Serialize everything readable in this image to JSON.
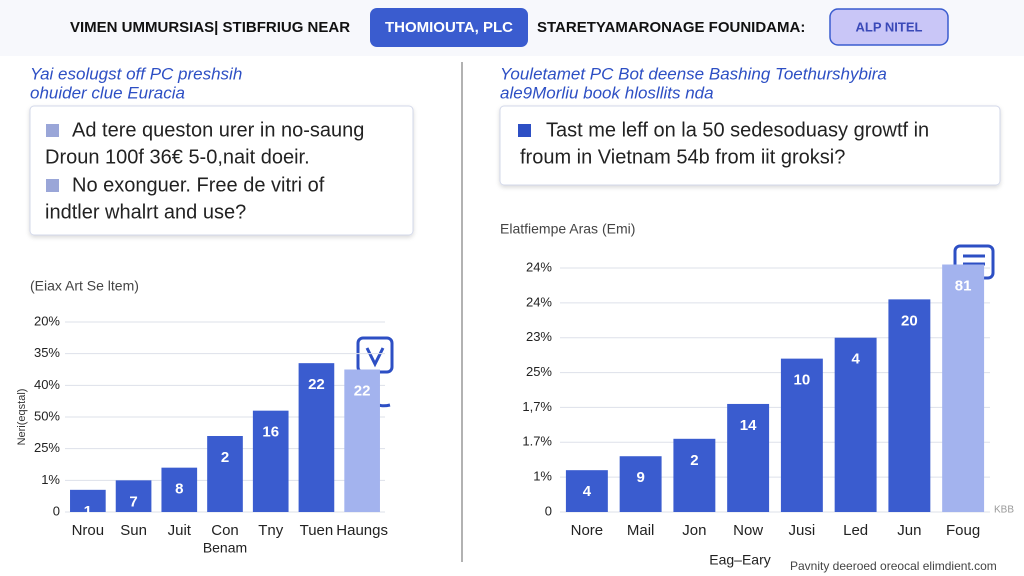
{
  "header": {
    "left": "VIMEN UMMURSIAS| STIBFRIUG NEAR",
    "tab": "THOMIOUTA, PLC",
    "middle": "STARETYAMARONAGE FOUNIDAMA:",
    "button": "ALP NITEL"
  },
  "left_panel": {
    "title": [
      "Yai esolugst off PC preshsih",
      "ohuider clue Euracia"
    ],
    "card": [
      [
        "Ad tere queston urer in no-saung",
        "Droun 100f 36€ 5-0,nait doeir."
      ],
      [
        "No exonguer. Free de vitri of",
        "indtler whalrt and use?"
      ]
    ]
  },
  "right_panel": {
    "title": [
      "Youletamet PC Bot deense Bashing Toethurshybira",
      "ale9Morliu book hlosllits nda"
    ],
    "card": [
      [
        "Tast me leff on la 50 sedesoduasy growtf in",
        "froum in Vietnam 54b from iit groksi?"
      ]
    ]
  },
  "footer_note": "Pavnity deeroed oreocal elimdient.com",
  "corner_mark": "KBB",
  "chart_data": [
    {
      "type": "bar",
      "title": "(Eiax Art Se ltem)",
      "y_label": "Neri(eqstal)",
      "x_label": "Benam",
      "categories": [
        "Nrou",
        "Sun",
        "Juit",
        "Con",
        "Tny",
        "Tuen",
        "Haungs"
      ],
      "values": [
        0.7,
        1.0,
        1.4,
        2.4,
        3.2,
        4.7,
        4.5
      ],
      "bar_labels": [
        "1",
        "7",
        "8",
        "2",
        "16",
        "22",
        "22"
      ],
      "colors": [
        "#3a5ccf",
        "#3a5ccf",
        "#3a5ccf",
        "#3a5ccf",
        "#3a5ccf",
        "#3a5ccf",
        "#a3b3ee"
      ],
      "ylim": [
        0,
        6
      ],
      "yticks": [
        0,
        {
          "value": 1,
          "label": "1%"
        },
        {
          "value": 2,
          "label": "25%"
        },
        {
          "value": 3,
          "label": "50%"
        },
        {
          "value": 4,
          "label": "40%"
        },
        {
          "value": 5,
          "label": "35%"
        },
        {
          "value": 6,
          "label": "20%"
        }
      ],
      "grid": true
    },
    {
      "type": "bar",
      "title": "Elatfiempe Aras (Emi)",
      "x_label": "Eag–Eary",
      "categories": [
        "Nore",
        "Mail",
        "Jon",
        "Now",
        "Jusi",
        "Led",
        "Jun",
        "Foug"
      ],
      "values": [
        1.2,
        1.6,
        2.1,
        3.1,
        4.4,
        5.0,
        6.1,
        7.1
      ],
      "bar_labels": [
        "4",
        "9",
        "2",
        "14",
        "10",
        "4",
        "20",
        "81"
      ],
      "colors": [
        "#3a5ccf",
        "#3a5ccf",
        "#3a5ccf",
        "#3a5ccf",
        "#3a5ccf",
        "#3a5ccf",
        "#3a5ccf",
        "#a3b3ee"
      ],
      "ylim": [
        0,
        7
      ],
      "yticks": [
        0,
        {
          "value": 1,
          "label": "1%"
        },
        {
          "value": 2,
          "label": "1.7%"
        },
        {
          "value": 3,
          "label": "1,7%"
        },
        {
          "value": 4,
          "label": "25%"
        },
        {
          "value": 5,
          "label": "23%"
        },
        {
          "value": 6,
          "label": "24%"
        },
        {
          "value": 7,
          "label": "24%"
        }
      ],
      "grid": true
    }
  ]
}
